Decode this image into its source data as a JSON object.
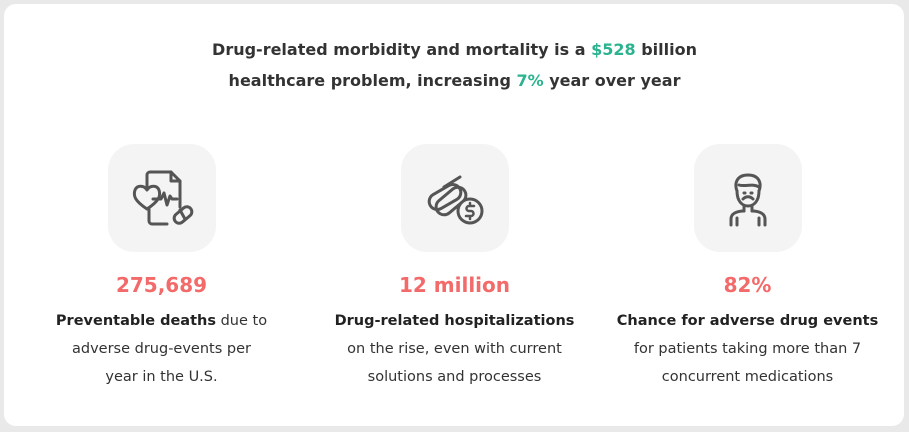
{
  "headline": {
    "line1_pre": "Drug-related morbidity and mortality is a ",
    "amount": "$528",
    "line1_post": " billion",
    "line2_pre": "healthcare problem, increasing ",
    "percent": "7%",
    "line2_post": " year over year"
  },
  "colors": {
    "accent_green": "#2bb38f",
    "stat_red": "#f26a6a"
  },
  "stats": [
    {
      "icon": "medical-record-heart-pill-icon",
      "value": "275,689",
      "bold": "Preventable deaths",
      "rest1": " due to",
      "rest2": "adverse drug-events per",
      "rest3": "year in the U.S."
    },
    {
      "icon": "pills-dollar-icon",
      "value": "12 million",
      "bold": "Drug-related hospitalizations",
      "rest1": "",
      "rest2": "on the rise, even with current",
      "rest3": "solutions and processes"
    },
    {
      "icon": "sad-patient-icon",
      "value": "82%",
      "bold": "Chance for adverse drug events",
      "rest1": "",
      "rest2": "for patients taking more than 7",
      "rest3": "concurrent medications"
    }
  ]
}
